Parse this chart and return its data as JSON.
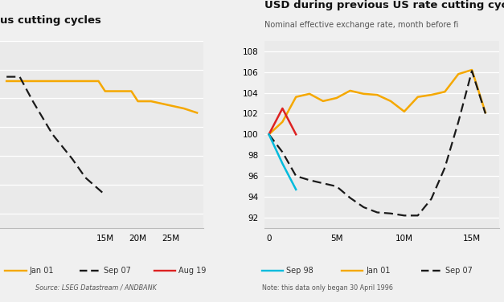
{
  "fig_bg": "#F0F0F0",
  "left_chart": {
    "title": "us cutting cycles",
    "bg_color": "#EAEAEA",
    "series_order": [
      "jan01",
      "sep07"
    ],
    "series": {
      "jan01": {
        "label": "Jan 01",
        "color": "#F5A800",
        "linestyle": "solid",
        "lw": 1.8,
        "x": [
          0,
          5,
          10,
          14,
          15,
          19,
          20,
          22,
          25,
          27,
          29
        ],
        "y": [
          97.2,
          97.2,
          97.2,
          97.2,
          96.5,
          96.5,
          95.8,
          95.8,
          95.5,
          95.3,
          95.0
        ]
      },
      "sep07": {
        "label": "Sep 07",
        "color": "#1A1A1A",
        "linestyle": "dashed",
        "lw": 1.6,
        "x": [
          0,
          2,
          4,
          7,
          10,
          12,
          15
        ],
        "y": [
          97.5,
          97.5,
          95.8,
          93.5,
          91.8,
          90.5,
          89.3
        ]
      }
    },
    "xlim": [
      -1,
      30
    ],
    "ylim": [
      87,
      100
    ],
    "xticks": [
      15,
      20,
      25
    ],
    "xticklabels": [
      "15M",
      "20M",
      "25M"
    ],
    "legend": [
      {
        "label": "Jan 01",
        "color": "#F5A800",
        "linestyle": "solid"
      },
      {
        "label": "Sep 07",
        "color": "#1A1A1A",
        "linestyle": "dashed"
      },
      {
        "label": "Aug 19",
        "color": "#DD2222",
        "linestyle": "solid"
      }
    ],
    "source": "Source: LSEG Datastream / ANDBANK"
  },
  "right_chart": {
    "title": "USD during previous US rate cutting cyc",
    "subtitle": "Nominal effective exchange rate, month before fi",
    "bg_color": "#EAEAEA",
    "series_order": [
      "jan01",
      "sep07",
      "aug19",
      "sep98"
    ],
    "series": {
      "sep98": {
        "label": "Sep 98",
        "color": "#00BBDD",
        "linestyle": "solid",
        "lw": 1.8,
        "x": [
          0,
          1,
          2
        ],
        "y": [
          100.0,
          97.2,
          94.7
        ]
      },
      "aug19": {
        "label": "Aug 19",
        "color": "#DD2222",
        "linestyle": "solid",
        "lw": 1.8,
        "x": [
          0,
          1,
          2
        ],
        "y": [
          100.0,
          102.5,
          100.0
        ]
      },
      "jan01": {
        "label": "Jan 01",
        "color": "#F5A800",
        "linestyle": "solid",
        "lw": 1.8,
        "x": [
          0,
          1,
          2,
          3,
          4,
          5,
          6,
          7,
          8,
          9,
          10,
          11,
          12,
          13,
          14,
          15,
          16
        ],
        "y": [
          100.0,
          101.2,
          103.6,
          103.9,
          103.2,
          103.5,
          104.2,
          103.9,
          103.8,
          103.2,
          102.2,
          103.6,
          103.8,
          104.1,
          105.8,
          106.2,
          102.1
        ]
      },
      "sep07": {
        "label": "Sep 07",
        "color": "#1A1A1A",
        "linestyle": "dashed",
        "lw": 1.6,
        "x": [
          0,
          1,
          2,
          3,
          4,
          5,
          6,
          7,
          8,
          9,
          10,
          11,
          12,
          13,
          14,
          15,
          16
        ],
        "y": [
          100.0,
          98.3,
          96.0,
          95.6,
          95.3,
          95.0,
          93.9,
          93.0,
          92.5,
          92.4,
          92.2,
          92.2,
          93.8,
          96.8,
          101.2,
          106.1,
          102.0
        ]
      }
    },
    "xlim": [
      -0.3,
      17
    ],
    "ylim": [
      91,
      109
    ],
    "xticks": [
      0,
      5,
      10,
      15
    ],
    "xticklabels": [
      "0",
      "5M",
      "10M",
      "15M"
    ],
    "yticks": [
      92,
      94,
      96,
      98,
      100,
      102,
      104,
      106,
      108
    ],
    "legend": [
      {
        "label": "Sep 98",
        "color": "#00BBDD",
        "linestyle": "solid"
      },
      {
        "label": "Jan 01",
        "color": "#F5A800",
        "linestyle": "solid"
      },
      {
        "label": "Sep 07",
        "color": "#1A1A1A",
        "linestyle": "dashed"
      }
    ],
    "note": "Note: this data only began 30 April 1996"
  }
}
